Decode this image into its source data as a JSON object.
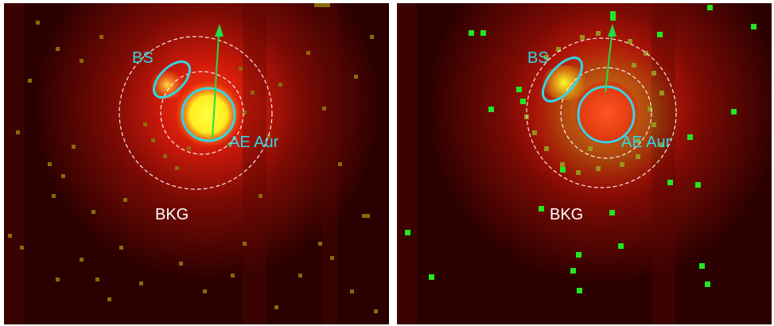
{
  "panels": [
    {
      "labels": {
        "bow_shock": "BS",
        "star": "AE Aur",
        "background": "BKG"
      }
    },
    {
      "labels": {
        "bow_shock": "BS",
        "star": "AE Aur",
        "background": "BKG"
      }
    }
  ],
  "colors": {
    "cyan": "#33d6e6",
    "arrow": "#22dd44",
    "background_ring": "#ffffff",
    "dark_red": "#3a0000",
    "pixels_left": "#8a6a08",
    "pixels_right": "#22e622",
    "source_left": "#ffff22",
    "source_right": "#ff4422"
  }
}
